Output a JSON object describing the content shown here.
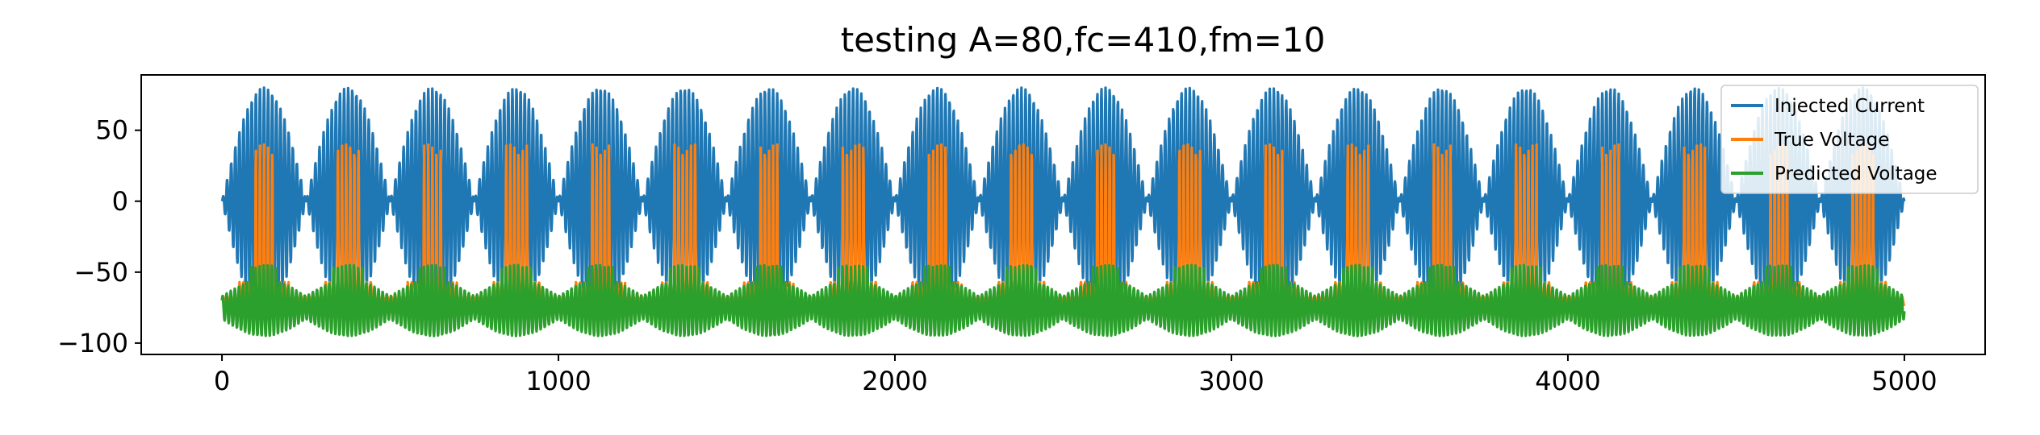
{
  "chart_data": {
    "type": "line",
    "title": "testing A=80,fc=410,fm=10",
    "xlabel": "",
    "ylabel": "",
    "xlim": [
      -240,
      5240
    ],
    "ylim": [
      -108,
      89
    ],
    "xticks": [
      0,
      1000,
      2000,
      3000,
      4000,
      5000
    ],
    "xtick_labels": [
      "0",
      "1000",
      "2000",
      "3000",
      "4000",
      "5000"
    ],
    "yticks": [
      50,
      0,
      -50,
      -100
    ],
    "ytick_labels": [
      "50",
      "0",
      "−50",
      "−100"
    ],
    "grid": false,
    "legend_position": "upper right",
    "n_samples": 5001,
    "series": [
      {
        "name": "Injected Current",
        "color": "#1f77b4",
        "description": "Amplitude-modulated sinusoid: 80*sin(2*pi*10*t)*sin(2*pi*410*t) style burst envelope, range about -80 to 80, ~20 bursts over 0-5000",
        "amplitude": 80,
        "carrier_period_samples": 12.2,
        "envelope_period_samples": 250,
        "range": [
          -80,
          80
        ]
      },
      {
        "name": "True Voltage",
        "color": "#ff7f0e",
        "description": "Baseline near -70 with periodic spikes up to about 40, two spikes per envelope cycle",
        "baseline": -70,
        "peak": 40,
        "range": [
          -80,
          40
        ]
      },
      {
        "name": "Predicted Voltage",
        "color": "#2ca02c",
        "description": "Oscillates around -75 between about -95 and -50",
        "baseline": -75,
        "range": [
          -95,
          -50
        ]
      }
    ]
  }
}
